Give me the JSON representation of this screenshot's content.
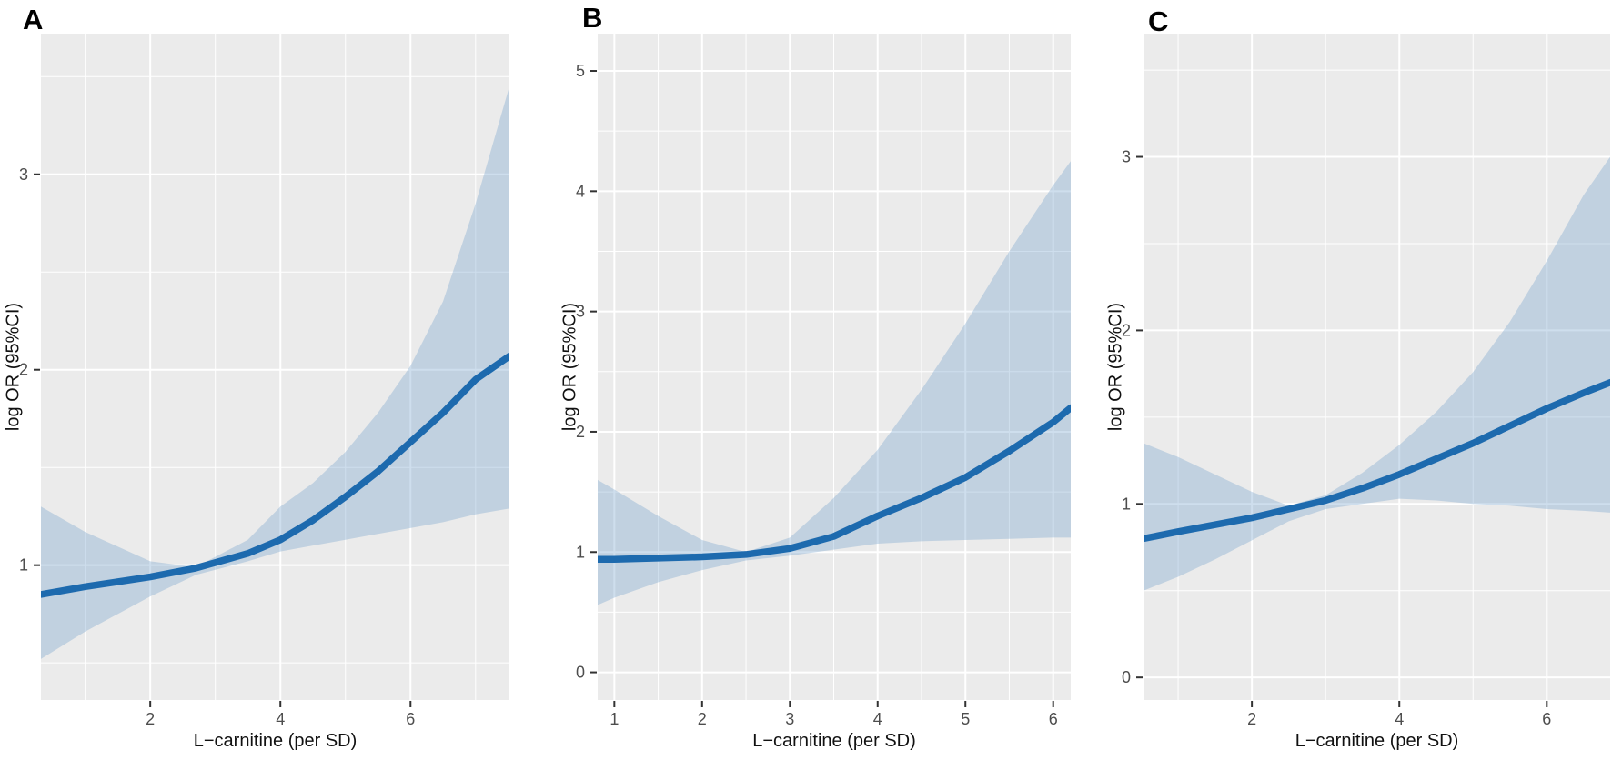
{
  "figure": {
    "description": "Three-panel restricted cubic spline figure of log OR (95%CI) versus L-carnitine (per SD)"
  },
  "chart_data": [
    {
      "type": "line",
      "label": "A",
      "xlabel": "L−carnitine (per SD)",
      "ylabel": "log OR (95%CI)",
      "x_range": [
        0.32,
        7.52
      ],
      "y_range": [
        0.31,
        3.72
      ],
      "x_ticks_major": [
        2,
        4,
        6
      ],
      "x_ticks_minor": [
        1,
        3,
        5,
        7
      ],
      "y_ticks_major": [
        1,
        2,
        3
      ],
      "y_ticks_minor": [
        0.5,
        1.5,
        2.5,
        3.5
      ],
      "grid": true,
      "legend": "none",
      "series": [
        {
          "name": "log OR",
          "x": [
            0.32,
            1,
            2,
            2.7,
            3.5,
            4,
            4.5,
            5,
            5.5,
            6,
            6.5,
            7,
            7.52
          ],
          "y": [
            0.85,
            0.89,
            0.94,
            0.985,
            1.06,
            1.13,
            1.23,
            1.35,
            1.48,
            1.63,
            1.78,
            1.95,
            2.07
          ]
        }
      ],
      "ribbon": {
        "name": "95% CI",
        "x": [
          0.32,
          1,
          2,
          2.7,
          3.5,
          4,
          4.5,
          5,
          5.5,
          6,
          6.5,
          7,
          7.52
        ],
        "upper": [
          1.3,
          1.17,
          1.02,
          0.99,
          1.13,
          1.3,
          1.42,
          1.58,
          1.78,
          2.02,
          2.35,
          2.85,
          3.45
        ],
        "lower": [
          0.52,
          0.66,
          0.84,
          0.95,
          1.02,
          1.07,
          1.1,
          1.13,
          1.16,
          1.19,
          1.22,
          1.26,
          1.29
        ]
      },
      "colors": {
        "line": "#1d6aae",
        "ribbon": "#7fa8d0",
        "panel_bg": "#ebebeb",
        "grid": "#ffffff",
        "tick_text": "#4d4d4d"
      }
    },
    {
      "type": "line",
      "label": "B",
      "xlabel": "L−carnitine (per SD)",
      "ylabel": "log OR (95%CI)",
      "x_range": [
        0.81,
        6.2
      ],
      "y_range": [
        -0.23,
        5.31
      ],
      "x_ticks_major": [
        1,
        2,
        3,
        4,
        5,
        6
      ],
      "x_ticks_minor": [
        1.5,
        2.5,
        3.5,
        4.5,
        5.5
      ],
      "y_ticks_major": [
        0,
        1,
        2,
        3,
        4,
        5
      ],
      "y_ticks_minor": [
        0.5,
        1.5,
        2.5,
        3.5,
        4.5
      ],
      "grid": true,
      "legend": "none",
      "series": [
        {
          "name": "log OR",
          "x": [
            0.81,
            1,
            1.5,
            2,
            2.5,
            3,
            3.5,
            4,
            4.5,
            5,
            5.5,
            6,
            6.2
          ],
          "y": [
            0.94,
            0.94,
            0.95,
            0.96,
            0.98,
            1.03,
            1.13,
            1.3,
            1.45,
            1.62,
            1.84,
            2.08,
            2.2
          ]
        }
      ],
      "ribbon": {
        "name": "95% CI",
        "x": [
          0.81,
          1,
          1.5,
          2,
          2.5,
          3,
          3.5,
          4,
          4.5,
          5,
          5.5,
          6,
          6.2
        ],
        "upper": [
          1.6,
          1.52,
          1.3,
          1.1,
          1.0,
          1.12,
          1.45,
          1.85,
          2.35,
          2.9,
          3.5,
          4.05,
          4.25
        ],
        "lower": [
          0.56,
          0.62,
          0.75,
          0.85,
          0.93,
          0.97,
          1.02,
          1.07,
          1.09,
          1.1,
          1.11,
          1.12,
          1.12
        ]
      },
      "colors": {
        "line": "#1d6aae",
        "ribbon": "#7fa8d0",
        "panel_bg": "#ebebeb",
        "grid": "#ffffff",
        "tick_text": "#4d4d4d"
      }
    },
    {
      "type": "line",
      "label": "C",
      "xlabel": "L−carnitine (per SD)",
      "ylabel": "log OR (95%CI)",
      "x_range": [
        0.53,
        6.86
      ],
      "y_range": [
        -0.13,
        3.71
      ],
      "x_ticks_major": [
        2,
        4,
        6
      ],
      "x_ticks_minor": [
        1,
        3,
        5
      ],
      "y_ticks_major": [
        0,
        1,
        2,
        3
      ],
      "y_ticks_minor": [
        0.5,
        1.5,
        2.5,
        3.5
      ],
      "grid": true,
      "legend": "none",
      "series": [
        {
          "name": "log OR",
          "x": [
            0.53,
            1,
            1.5,
            2,
            2.5,
            3,
            3.5,
            4,
            4.5,
            5,
            5.5,
            6,
            6.5,
            6.86
          ],
          "y": [
            0.8,
            0.84,
            0.88,
            0.92,
            0.97,
            1.02,
            1.09,
            1.17,
            1.26,
            1.35,
            1.45,
            1.55,
            1.64,
            1.7
          ]
        }
      ],
      "ribbon": {
        "name": "95% CI",
        "x": [
          0.53,
          1,
          1.5,
          2,
          2.5,
          3,
          3.5,
          4,
          4.5,
          5,
          5.5,
          6,
          6.5,
          6.86
        ],
        "upper": [
          1.35,
          1.27,
          1.17,
          1.07,
          0.99,
          1.05,
          1.18,
          1.34,
          1.53,
          1.76,
          2.05,
          2.4,
          2.78,
          3.0
        ],
        "lower": [
          0.5,
          0.58,
          0.68,
          0.79,
          0.9,
          0.97,
          1.0,
          1.03,
          1.02,
          1.0,
          0.99,
          0.97,
          0.96,
          0.95
        ]
      },
      "colors": {
        "line": "#1d6aae",
        "ribbon": "#7fa8d0",
        "panel_bg": "#ebebeb",
        "grid": "#ffffff",
        "tick_text": "#4d4d4d"
      }
    }
  ]
}
